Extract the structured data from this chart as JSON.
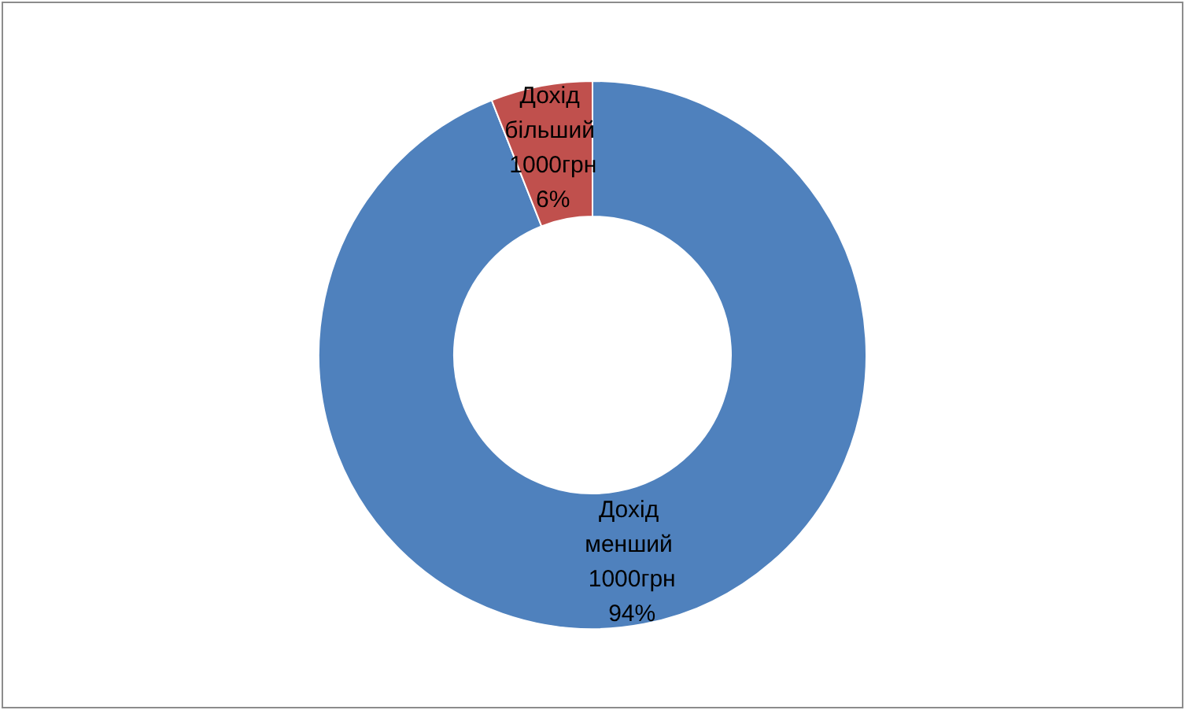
{
  "chart_data": {
    "type": "donut",
    "categories": [
      "Дохід менший 1000грн",
      "Дохід більший 1000грн"
    ],
    "values": [
      94,
      6
    ],
    "colors": [
      "#4f81bd",
      "#c0504d"
    ],
    "value_labels": [
      "94%",
      "6%"
    ],
    "legend": false
  }
}
